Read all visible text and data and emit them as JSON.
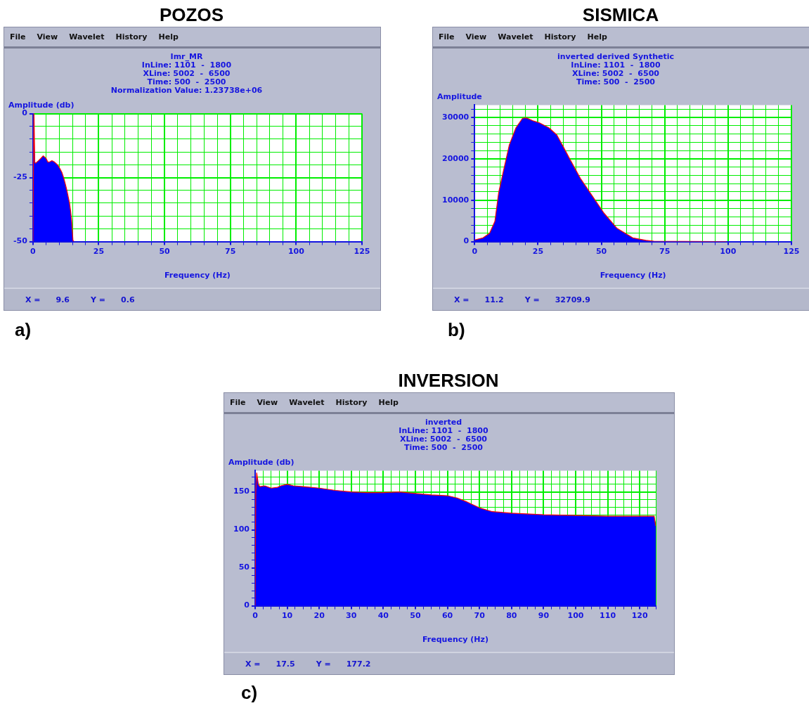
{
  "chart_data": [
    {
      "type": "area",
      "title": "POZOS",
      "subtitle": "Imr_MR\nInLine: 1101  -  1800\nXLine: 5002  -  6500\nTime: 500  -  2500\nNormalization Value: 1.23738e+06",
      "xlabel": "Frequency (Hz)",
      "ylabel": "Amplitude (db)",
      "grid": true,
      "marker": "none",
      "annotations": [
        "File",
        "View",
        "Wavelet",
        "History",
        "Help",
        "X =",
        "9.6",
        "Y =",
        "0.6",
        "a)"
      ],
      "xlim": [
        0,
        125
      ],
      "ylim": [
        -50,
        0
      ],
      "xticks": [
        0,
        {
          "value": 5,
          "label": null
        },
        {
          "value": 10,
          "label": null
        },
        {
          "value": 15,
          "label": null
        },
        {
          "value": 20,
          "label": null
        },
        25,
        {
          "value": 30,
          "label": null
        },
        {
          "value": 35,
          "label": null
        },
        {
          "value": 40,
          "label": null
        },
        {
          "value": 45,
          "label": null
        },
        50,
        {
          "value": 55,
          "label": null
        },
        {
          "value": 60,
          "label": null
        },
        {
          "value": 65,
          "label": null
        },
        {
          "value": 70,
          "label": null
        },
        75,
        {
          "value": 80,
          "label": null
        },
        {
          "value": 85,
          "label": null
        },
        {
          "value": 90,
          "label": null
        },
        {
          "value": 95,
          "label": null
        },
        100,
        {
          "value": 105,
          "label": null
        },
        {
          "value": 110,
          "label": null
        },
        {
          "value": 115,
          "label": null
        },
        {
          "value": 120,
          "label": null
        },
        125
      ],
      "yticks": [
        -50,
        {
          "value": -45,
          "label": null
        },
        {
          "value": -40,
          "label": null
        },
        {
          "value": -35,
          "label": null
        },
        {
          "value": -30,
          "label": null
        },
        -25,
        {
          "value": -20,
          "label": null
        },
        {
          "value": -15,
          "label": null
        },
        {
          "value": -10,
          "label": null
        },
        {
          "value": -5,
          "label": null
        },
        0
      ],
      "series": [
        {
          "color": "#0000ff",
          "x": [
            0,
            0.2,
            0.4,
            0.7,
            1,
            2,
            3,
            3.9,
            5,
            5.7,
            6.5,
            7.2,
            8,
            8.7,
            9.5,
            10.2,
            11,
            11.7,
            12.3,
            12.9,
            13.5,
            13.9,
            14.3,
            14.7,
            15.2,
            15.6
          ],
          "values": [
            -50,
            -20,
            0,
            -19,
            -19.4,
            -18.5,
            -17.5,
            -16.5,
            -17.5,
            -19,
            -18.8,
            -18.4,
            -18.8,
            -19.4,
            -20.2,
            -21.4,
            -23,
            -25.2,
            -27.5,
            -30,
            -33,
            -35,
            -38,
            -41.7,
            -49.5,
            -50
          ]
        }
      ]
    },
    {
      "type": "area",
      "title": "SISMICA",
      "subtitle": "inverted derived Synthetic\nInLine: 1101  -  1800\nXLine: 5002  -  6500\nTime: 500  -  2500",
      "xlabel": "Frequency (Hz)",
      "ylabel": "Amplitude",
      "grid": true,
      "marker": "none",
      "annotations": [
        "File",
        "View",
        "Wavelet",
        "History",
        "Help",
        "X =",
        "11.2",
        "Y =",
        "32709.9",
        "b)"
      ],
      "xlim": [
        0,
        125
      ],
      "ylim": [
        0,
        33000
      ],
      "xticks": [
        0,
        {
          "value": 5,
          "label": null
        },
        {
          "value": 10,
          "label": null
        },
        {
          "value": 15,
          "label": null
        },
        {
          "value": 20,
          "label": null
        },
        25,
        {
          "value": 30,
          "label": null
        },
        {
          "value": 35,
          "label": null
        },
        {
          "value": 40,
          "label": null
        },
        {
          "value": 45,
          "label": null
        },
        50,
        {
          "value": 55,
          "label": null
        },
        {
          "value": 60,
          "label": null
        },
        {
          "value": 65,
          "label": null
        },
        {
          "value": 70,
          "label": null
        },
        75,
        {
          "value": 80,
          "label": null
        },
        {
          "value": 85,
          "label": null
        },
        {
          "value": 90,
          "label": null
        },
        {
          "value": 95,
          "label": null
        },
        100,
        {
          "value": 105,
          "label": null
        },
        {
          "value": 110,
          "label": null
        },
        {
          "value": 115,
          "label": null
        },
        {
          "value": 120,
          "label": null
        },
        125
      ],
      "yticks": [
        0,
        {
          "value": 2000,
          "label": null
        },
        {
          "value": 4000,
          "label": null
        },
        {
          "value": 6000,
          "label": null
        },
        {
          "value": 8000,
          "label": null
        },
        10000,
        {
          "value": 12000,
          "label": null
        },
        {
          "value": 14000,
          "label": null
        },
        {
          "value": 16000,
          "label": null
        },
        {
          "value": 18000,
          "label": null
        },
        20000,
        {
          "value": 22000,
          "label": null
        },
        {
          "value": 24000,
          "label": null
        },
        {
          "value": 26000,
          "label": null
        },
        {
          "value": 28000,
          "label": null
        },
        30000,
        {
          "value": 32000,
          "label": null
        }
      ],
      "series": [
        {
          "color": "#0000ff",
          "x": [
            0,
            3.3,
            5.9,
            8,
            9.5,
            11.6,
            13.7,
            16.3,
            18.9,
            20.4,
            23,
            25.6,
            29.3,
            32.4,
            35,
            37.5,
            41.7,
            45.8,
            51,
            56.2,
            62.4,
            67.6,
            70.7,
            99.3
          ],
          "values": [
            400,
            900,
            2000,
            4900,
            11900,
            17700,
            23400,
            27500,
            29800,
            29900,
            29200,
            28700,
            27500,
            25800,
            22900,
            20000,
            15300,
            11600,
            6900,
            3200,
            900,
            300,
            100,
            0
          ]
        }
      ]
    },
    {
      "type": "area",
      "title": "INVERSION",
      "subtitle": "inverted\nInLine: 1101  -  1800\nXLine: 5002  -  6500\nTime: 500  -  2500",
      "xlabel": "Frequency (Hz)",
      "ylabel": "Amplitude (db)",
      "grid": true,
      "marker": "none",
      "annotations": [
        "File",
        "View",
        "Wavelet",
        "History",
        "Help",
        "X =",
        "17.5",
        "Y =",
        "177.2",
        "c)"
      ],
      "xlim": [
        0,
        125
      ],
      "ylim": [
        0,
        178
      ],
      "xticks": [
        0,
        {
          "value": 2.5,
          "label": null
        },
        {
          "value": 5,
          "label": null
        },
        {
          "value": 7.5,
          "label": null
        },
        10,
        {
          "value": 12.5,
          "label": null
        },
        {
          "value": 15,
          "label": null
        },
        {
          "value": 17.5,
          "label": null
        },
        20,
        {
          "value": 22.5,
          "label": null
        },
        {
          "value": 25,
          "label": null
        },
        {
          "value": 27.5,
          "label": null
        },
        30,
        {
          "value": 32.5,
          "label": null
        },
        {
          "value": 35,
          "label": null
        },
        {
          "value": 37.5,
          "label": null
        },
        40,
        {
          "value": 42.5,
          "label": null
        },
        {
          "value": 45,
          "label": null
        },
        {
          "value": 47.5,
          "label": null
        },
        50,
        {
          "value": 52.5,
          "label": null
        },
        {
          "value": 55,
          "label": null
        },
        {
          "value": 57.5,
          "label": null
        },
        60,
        {
          "value": 62.5,
          "label": null
        },
        {
          "value": 65,
          "label": null
        },
        {
          "value": 67.5,
          "label": null
        },
        70,
        {
          "value": 72.5,
          "label": null
        },
        {
          "value": 75,
          "label": null
        },
        {
          "value": 77.5,
          "label": null
        },
        80,
        {
          "value": 82.5,
          "label": null
        },
        {
          "value": 85,
          "label": null
        },
        {
          "value": 87.5,
          "label": null
        },
        90,
        {
          "value": 92.5,
          "label": null
        },
        {
          "value": 95,
          "label": null
        },
        {
          "value": 97.5,
          "label": null
        },
        100,
        {
          "value": 102.5,
          "label": null
        },
        {
          "value": 105,
          "label": null
        },
        {
          "value": 107.5,
          "label": null
        },
        110,
        {
          "value": 112.5,
          "label": null
        },
        {
          "value": 115,
          "label": null
        },
        {
          "value": 117.5,
          "label": null
        },
        120,
        {
          "value": 122.5,
          "label": null
        },
        {
          "value": 125,
          "label": null
        }
      ],
      "yticks": [
        0,
        {
          "value": 10,
          "label": null
        },
        {
          "value": 20,
          "label": null
        },
        {
          "value": 30,
          "label": null
        },
        {
          "value": 40,
          "label": null
        },
        50,
        {
          "value": 60,
          "label": null
        },
        {
          "value": 70,
          "label": null
        },
        {
          "value": 80,
          "label": null
        },
        {
          "value": 90,
          "label": null
        },
        100,
        {
          "value": 110,
          "label": null
        },
        {
          "value": 120,
          "label": null
        },
        {
          "value": 130,
          "label": null
        },
        {
          "value": 140,
          "label": null
        },
        150,
        {
          "value": 160,
          "label": null
        },
        {
          "value": 170,
          "label": null
        }
      ],
      "series": [
        {
          "color": "#0000ff",
          "x": [
            0,
            0.2,
            0.5,
            1,
            1.5,
            3,
            5,
            7,
            8,
            10,
            12,
            15,
            20,
            25,
            30,
            35,
            40,
            45,
            50,
            55,
            60,
            63,
            66,
            70,
            74,
            80,
            90,
            100,
            110,
            120,
            124.5,
            125
          ],
          "values": [
            0,
            150,
            175,
            160,
            157,
            158,
            155,
            156,
            158,
            160,
            158,
            157,
            155,
            152,
            150,
            149,
            149,
            150,
            148,
            146,
            145,
            142,
            137,
            129,
            124,
            122,
            120,
            119,
            118,
            118,
            118,
            105
          ]
        }
      ]
    }
  ]
}
